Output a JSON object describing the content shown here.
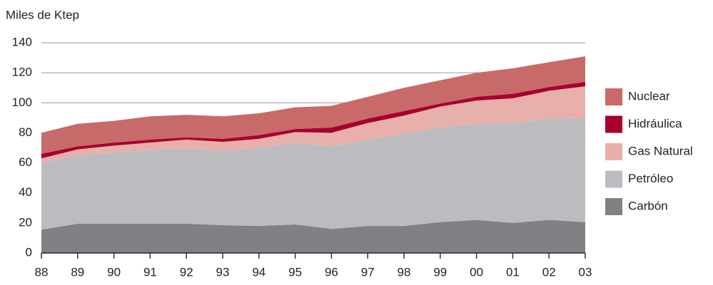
{
  "chart_data": {
    "type": "stacked_area",
    "title": "Miles de Ktep",
    "categories": [
      "88",
      "89",
      "90",
      "91",
      "92",
      "93",
      "94",
      "95",
      "96",
      "97",
      "98",
      "99",
      "00",
      "01",
      "02",
      "03"
    ],
    "series": [
      {
        "name": "Carbón",
        "color": "#808185",
        "values": [
          15.5,
          19.5,
          19.5,
          19.5,
          19.5,
          18.5,
          18,
          19,
          16,
          18,
          18,
          20.5,
          22,
          20,
          22,
          20.5
        ]
      },
      {
        "name": "Petróleo",
        "color": "#bcbcc0",
        "values": [
          44.5,
          45.5,
          47.5,
          49,
          50,
          49.5,
          52,
          54.5,
          55,
          57.5,
          61.5,
          63,
          64,
          66.5,
          67.5,
          69.5
        ]
      },
      {
        "name": "Gas Natural",
        "color": "#e8b0ab",
        "values": [
          3,
          4,
          4.5,
          5,
          6,
          6,
          6,
          7,
          9,
          11,
          12,
          14,
          15.5,
          16.5,
          18.5,
          21
        ]
      },
      {
        "name": "Hidráulica",
        "color": "#a8002e",
        "values": [
          3,
          2,
          2,
          2,
          1.5,
          2,
          2.5,
          2,
          3.5,
          3,
          3,
          2,
          2.5,
          3,
          2.5,
          3
        ]
      },
      {
        "name": "Nuclear",
        "color": "#c96a6a",
        "values": [
          14,
          15,
          14.5,
          15.5,
          15,
          15,
          14.5,
          14.5,
          14.5,
          14.5,
          15.5,
          15.5,
          16,
          17,
          16.5,
          17
        ]
      }
    ],
    "ylim": [
      0,
      140
    ],
    "yticks": [
      0,
      20,
      40,
      60,
      80,
      100,
      120,
      140
    ],
    "grid": true,
    "legend": "right"
  }
}
